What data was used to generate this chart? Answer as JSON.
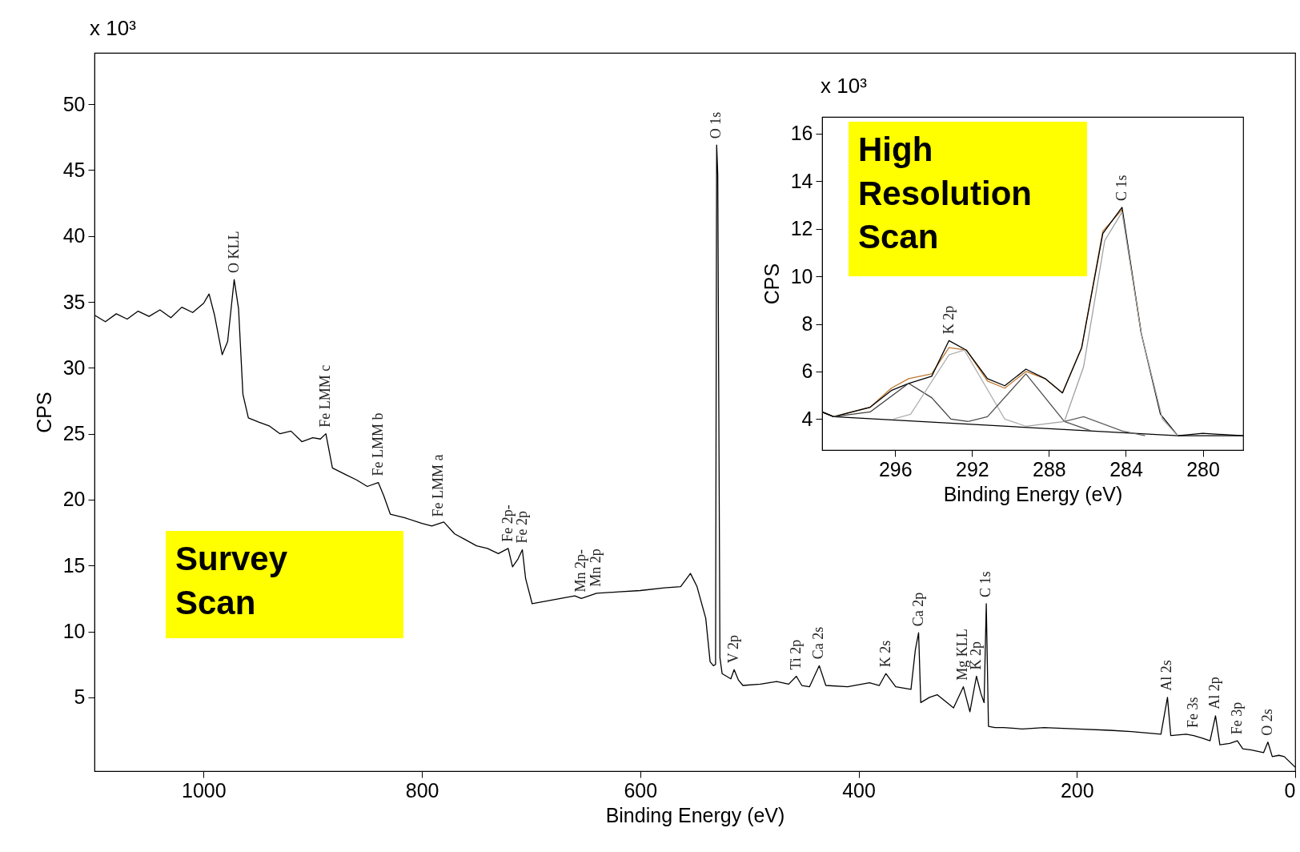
{
  "chart_data": [
    {
      "type": "line",
      "xlabel": "Binding Energy (eV)",
      "ylabel": "CPS",
      "xlim": [
        1100,
        0
      ],
      "ylim": [
        -0.6,
        53.9
      ],
      "xticks": [
        1000,
        800,
        600,
        400,
        200,
        0
      ],
      "yticks": [
        5,
        10,
        15,
        20,
        25,
        30,
        35,
        40,
        45,
        50
      ],
      "series": [
        {
          "color": "#000000",
          "x": [
            1100,
            1090,
            1080,
            1070,
            1060,
            1050,
            1040,
            1030,
            1020,
            1010,
            1000,
            995,
            990,
            983,
            978,
            972,
            968,
            964,
            959,
            950,
            940,
            930,
            920,
            910,
            900,
            893,
            888,
            882,
            870,
            860,
            850,
            840,
            835,
            829,
            815,
            800,
            791,
            780,
            770,
            761,
            750,
            740,
            730,
            721,
            717,
            712,
            708,
            705,
            699,
            680,
            660,
            654,
            640,
            620,
            600,
            578,
            563,
            554,
            548,
            540,
            536,
            533,
            531,
            530,
            529,
            527,
            525,
            517,
            514,
            510,
            506,
            490,
            475,
            464,
            457,
            452,
            445,
            436,
            430,
            410,
            390,
            381,
            375,
            366,
            352,
            348,
            345,
            343,
            335,
            328,
            313,
            304,
            298,
            292,
            288,
            285,
            283,
            281,
            275,
            267,
            250,
            230,
            199,
            170,
            150,
            123,
            117,
            114,
            100,
            93,
            85,
            78,
            73,
            69,
            60,
            53,
            48,
            40,
            29,
            25,
            21,
            15,
            10,
            0
          ],
          "values": [
            34.0,
            33.5,
            34.1,
            33.7,
            34.3,
            33.9,
            34.4,
            33.8,
            34.6,
            34.2,
            34.9,
            35.6,
            34.0,
            31.0,
            32.0,
            36.7,
            34.5,
            28.0,
            26.2,
            25.9,
            25.6,
            25.0,
            25.2,
            24.4,
            24.7,
            24.6,
            25.0,
            22.4,
            21.9,
            21.5,
            21.0,
            21.3,
            20.3,
            18.9,
            18.6,
            18.2,
            18.0,
            18.3,
            17.4,
            17.0,
            16.5,
            16.3,
            15.9,
            16.3,
            14.9,
            15.5,
            16.2,
            14.0,
            12.1,
            12.4,
            12.7,
            12.5,
            12.9,
            13.0,
            13.1,
            13.3,
            13.4,
            14.4,
            13.4,
            11.0,
            7.7,
            7.4,
            7.5,
            46.9,
            44.7,
            8.0,
            6.8,
            6.4,
            7.1,
            6.3,
            5.9,
            6.0,
            6.2,
            6.0,
            6.6,
            5.9,
            5.8,
            7.4,
            5.9,
            5.8,
            6.1,
            5.9,
            6.8,
            5.8,
            5.6,
            8.6,
            9.9,
            4.6,
            5.0,
            5.2,
            4.2,
            5.8,
            3.9,
            6.6,
            5.3,
            4.6,
            12.1,
            2.8,
            2.7,
            2.7,
            2.6,
            2.7,
            2.6,
            2.5,
            2.4,
            2.2,
            5.0,
            2.1,
            2.2,
            2.1,
            1.9,
            1.7,
            3.6,
            1.4,
            1.5,
            1.7,
            1.1,
            1.0,
            0.8,
            1.6,
            0.5,
            0.6,
            0.5,
            -0.3
          ]
        }
      ],
      "annotations": [
        "x 10³",
        "Survey Scan",
        {
          "text": "O KLL",
          "x": 972,
          "y": 36.7
        },
        {
          "text": "Fe LMM c",
          "x": 888,
          "y": 25.0
        },
        {
          "text": "Fe LMM b",
          "x": 840,
          "y": 21.3
        },
        {
          "text": "Fe LMM a",
          "x": 785,
          "y": 18.2
        },
        {
          "text": "Fe 2p-",
          "x": 721,
          "y": 16.3
        },
        {
          "text": "Fe 2p",
          "x": 708,
          "y": 16.2
        },
        {
          "text": "Mn 2p-",
          "x": 654,
          "y": 12.5
        },
        {
          "text": "Mn 2p",
          "x": 640,
          "y": 12.9
        },
        {
          "text": "O 1s",
          "x": 530,
          "y": 46.9
        },
        {
          "text": "V 2p",
          "x": 514,
          "y": 7.1
        },
        {
          "text": "Ti 2p",
          "x": 457,
          "y": 6.6
        },
        {
          "text": "Ca 2s",
          "x": 436,
          "y": 7.4
        },
        {
          "text": "K 2s",
          "x": 375,
          "y": 6.8
        },
        {
          "text": "Ca 2p",
          "x": 345,
          "y": 9.9
        },
        {
          "text": "Mg KLL",
          "x": 304,
          "y": 5.8
        },
        {
          "text": "K 2p",
          "x": 292,
          "y": 6.6
        },
        {
          "text": "C 1s",
          "x": 283,
          "y": 12.1
        },
        {
          "text": "Al 2s",
          "x": 117,
          "y": 5.0
        },
        {
          "text": "Fe 3s",
          "x": 93,
          "y": 2.2
        },
        {
          "text": "Al 2p",
          "x": 73,
          "y": 3.6
        },
        {
          "text": "Fe 3p",
          "x": 53,
          "y": 1.7
        },
        {
          "text": "O 2s",
          "x": 25,
          "y": 1.6
        }
      ]
    },
    {
      "type": "line",
      "xlabel": "Binding Energy (eV)",
      "ylabel": "CPS",
      "xlim": [
        299.8,
        277.9
      ],
      "ylim": [
        2.7,
        16.7
      ],
      "xticks": [
        296,
        292,
        288,
        284,
        280
      ],
      "yticks": [
        4,
        6,
        8,
        10,
        12,
        14,
        16
      ],
      "series": [
        {
          "color": "#c07830",
          "x": [
            299.8,
            299.2,
            297.3,
            296.2,
            295.3,
            294.1,
            293.2,
            292.3,
            291.2,
            290.3,
            289.2,
            288.2,
            287.3,
            286.3,
            285.2,
            284.2,
            283.2
          ],
          "values": [
            4.3,
            4.1,
            4.5,
            5.3,
            5.7,
            5.9,
            7.0,
            6.9,
            5.6,
            5.3,
            6.0,
            5.7,
            5.1,
            7.0,
            11.9,
            12.8,
            7.6
          ]
        },
        {
          "color": "#000000",
          "x": [
            299.8,
            299.2,
            297.3,
            296.2,
            295.3,
            294.1,
            293.2,
            292.3,
            291.2,
            290.3,
            289.2,
            288.2,
            287.3,
            286.3,
            285.2,
            284.2,
            283.2,
            282.2,
            281.3,
            280.0,
            277.9
          ],
          "values": [
            4.3,
            4.1,
            4.5,
            5.2,
            5.5,
            5.8,
            7.3,
            6.9,
            5.7,
            5.4,
            6.1,
            5.7,
            5.1,
            7.0,
            11.8,
            12.9,
            7.6,
            4.2,
            3.3,
            3.4,
            3.3
          ]
        },
        {
          "color": "#000000",
          "x": [
            299.8,
            299.2,
            281.3,
            277.9
          ],
          "values": [
            4.3,
            4.1,
            3.3,
            3.3
          ]
        },
        {
          "color": "#404040",
          "x": [
            299.2,
            297.3,
            295.3,
            294.1,
            293.1,
            292.2
          ],
          "values": [
            4.1,
            4.3,
            5.5,
            4.9,
            4.0,
            3.9
          ]
        },
        {
          "color": "#b0b0b0",
          "x": [
            296.1,
            295.2,
            293.2,
            292.4,
            290.3,
            289.2
          ],
          "values": [
            4.0,
            4.2,
            6.7,
            6.9,
            4.0,
            3.7
          ]
        },
        {
          "color": "#505050",
          "x": [
            292.2,
            291.2,
            289.2,
            287.2,
            285.8
          ],
          "values": [
            3.9,
            4.1,
            5.9,
            3.9,
            3.5
          ]
        },
        {
          "color": "#a0a0a0",
          "x": [
            289.2,
            287.2,
            286.2,
            285.1,
            284.2,
            283.2,
            282.1,
            281.3
          ],
          "values": [
            3.7,
            3.9,
            6.2,
            11.5,
            12.7,
            7.6,
            4.0,
            3.3
          ]
        },
        {
          "color": "#606060",
          "x": [
            287.2,
            286.2,
            284.2,
            283.0
          ],
          "values": [
            3.9,
            4.1,
            3.5,
            3.3
          ]
        }
      ],
      "annotations": [
        "x 10³",
        "High Resolution Scan",
        {
          "text": "K 2p",
          "x": 293.2,
          "y": 7.3
        },
        {
          "text": "C 1s",
          "x": 284.2,
          "y": 12.9
        }
      ]
    }
  ]
}
